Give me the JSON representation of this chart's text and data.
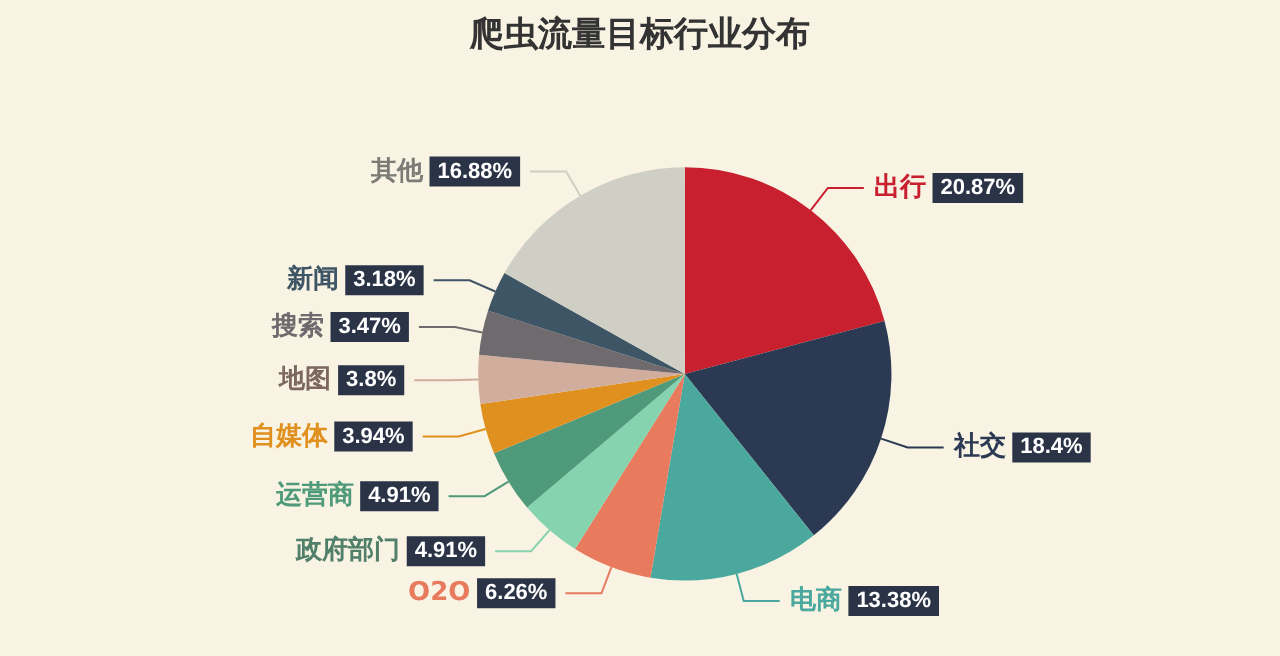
{
  "chart_data": {
    "type": "pie",
    "title": "爬虫流量目标行业分布",
    "categories": [
      "出行",
      "社交",
      "电商",
      "O2O",
      "政府部门",
      "运营商",
      "自媒体",
      "地图",
      "搜索",
      "新闻",
      "其他"
    ],
    "values": [
      20.87,
      18.4,
      13.38,
      6.26,
      4.91,
      4.91,
      3.94,
      3.8,
      3.47,
      3.18,
      16.88
    ],
    "value_labels": [
      "20.87%",
      "18.4%",
      "13.38%",
      "6.26%",
      "4.91%",
      "4.91%",
      "3.94%",
      "3.8%",
      "3.47%",
      "3.18%",
      "16.88%"
    ],
    "colors": [
      "#c8202f",
      "#2b3a52",
      "#4aa89e",
      "#e87a5d",
      "#86d3b0",
      "#4f9a7a",
      "#e0901e",
      "#d1ad9e",
      "#6e6a6e",
      "#3e5566",
      "#cfcfc6"
    ]
  }
}
